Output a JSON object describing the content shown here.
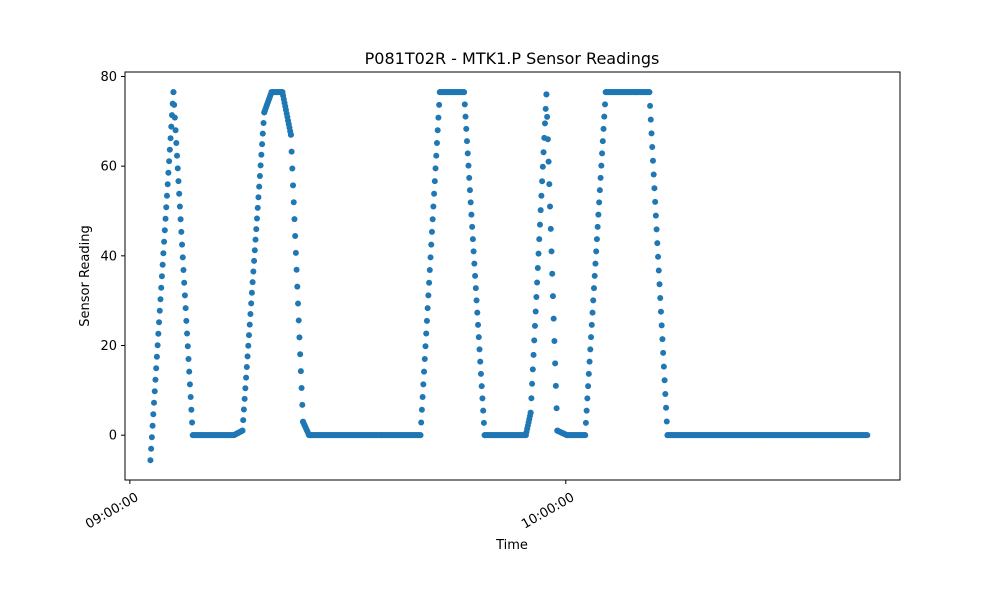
{
  "chart_data": {
    "type": "scatter",
    "title": "P081T02R - MTK1.P Sensor Readings",
    "xlabel": "Time",
    "ylabel": "Sensor Reading",
    "x_unit": "time of day (HH:MM:SS)",
    "xlim": [
      "08:59:20",
      "10:46:00"
    ],
    "ylim": [
      -10,
      81
    ],
    "x_ticks": [
      "09:00:00",
      "10:00:00"
    ],
    "y_ticks": [
      0,
      20,
      40,
      60,
      80
    ],
    "grid": false,
    "legend": "none",
    "marker_color": "#1f77b4",
    "series": [
      {
        "segments": [
          {
            "from": [
              "09:02:50",
              -5.6
            ],
            "to": [
              "09:06:00",
              76.5
            ]
          },
          {
            "from": [
              "09:06:00",
              76.5
            ],
            "to": [
              "09:08:40",
              0
            ]
          },
          {
            "from": [
              "09:08:40",
              0
            ],
            "to": [
              "09:14:20",
              0
            ]
          },
          {
            "from": [
              "09:14:20",
              0
            ],
            "to": [
              "09:15:30",
              1
            ]
          },
          {
            "from": [
              "09:15:30",
              1
            ],
            "to": [
              "09:18:30",
              72
            ]
          },
          {
            "from": [
              "09:18:30",
              72
            ],
            "to": [
              "09:19:30",
              76.5
            ]
          },
          {
            "from": [
              "09:19:30",
              76.5
            ],
            "to": [
              "09:21:00",
              76.5
            ]
          },
          {
            "from": [
              "09:21:00",
              76.5
            ],
            "to": [
              "09:22:10",
              67
            ]
          },
          {
            "from": [
              "09:22:10",
              67
            ],
            "to": [
              "09:23:50",
              3
            ]
          },
          {
            "from": [
              "09:23:50",
              3
            ],
            "to": [
              "09:24:40",
              0
            ]
          },
          {
            "from": [
              "09:24:40",
              0
            ],
            "to": [
              "09:40:00",
              0
            ]
          },
          {
            "from": [
              "09:40:00",
              0
            ],
            "to": [
              "09:42:40",
              76.5
            ]
          },
          {
            "from": [
              "09:42:40",
              76.5
            ],
            "to": [
              "09:46:00",
              76.5
            ]
          },
          {
            "from": [
              "09:46:00",
              76.5
            ],
            "to": [
              "09:48:50",
              0
            ]
          },
          {
            "from": [
              "09:48:50",
              0
            ],
            "to": [
              "09:54:30",
              0
            ]
          },
          {
            "from": [
              "09:54:30",
              0
            ],
            "to": [
              "09:55:10",
              5
            ]
          },
          {
            "from": [
              "09:55:10",
              5
            ],
            "to": [
              "09:57:20",
              76
            ]
          },
          {
            "from": [
              "09:57:20",
              76
            ],
            "to": [
              "09:58:50",
              1
            ]
          },
          {
            "from": [
              "09:58:50",
              1
            ],
            "to": [
              "10:00:10",
              0
            ]
          },
          {
            "from": [
              "10:00:10",
              0
            ],
            "to": [
              "10:02:40",
              0
            ]
          },
          {
            "from": [
              "10:02:40",
              0
            ],
            "to": [
              "10:05:30",
              76.5
            ]
          },
          {
            "from": [
              "10:05:30",
              76.5
            ],
            "to": [
              "10:11:30",
              76.5
            ]
          },
          {
            "from": [
              "10:11:30",
              76.5
            ],
            "to": [
              "10:14:00",
              0
            ]
          },
          {
            "from": [
              "10:14:00",
              0
            ],
            "to": [
              "10:41:30",
              0
            ]
          }
        ]
      }
    ]
  }
}
